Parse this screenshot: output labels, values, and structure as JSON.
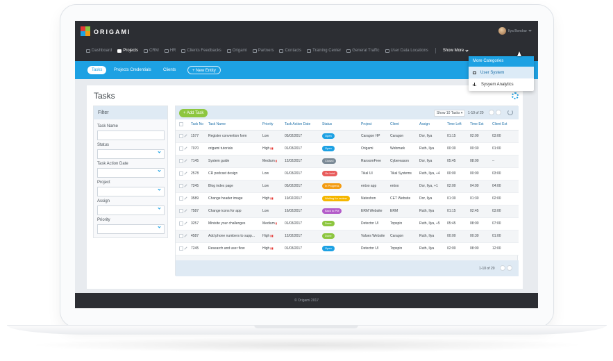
{
  "app": {
    "logo": "ORIGAMI",
    "user_name": "Ilya Bondrar"
  },
  "nav": {
    "items": [
      {
        "label": "Dashboard",
        "icon": "dashboard-icon"
      },
      {
        "label": "Projects",
        "icon": "briefcase-icon"
      },
      {
        "label": "CRM",
        "icon": "crm-icon"
      },
      {
        "label": "HR",
        "icon": "people-icon"
      },
      {
        "label": "Clients Feedbacks",
        "icon": "feedback-icon"
      },
      {
        "label": "Origami",
        "icon": "origami-icon"
      },
      {
        "label": "Partners",
        "icon": "partners-icon"
      },
      {
        "label": "Contacts",
        "icon": "contacts-icon"
      },
      {
        "label": "Training Center",
        "icon": "training-icon"
      },
      {
        "label": "General Traffic",
        "icon": "traffic-icon"
      },
      {
        "label": "User Data Locations",
        "icon": "location-icon"
      }
    ],
    "show_more": "Show More"
  },
  "subnav": {
    "tasks": "Tasks",
    "credentials": "Projects Credentials",
    "clients": "Clients",
    "new_entity": "+ New Entity"
  },
  "dropdown": {
    "header": "More Categories",
    "items": [
      "User System",
      "Sysyem Analytics"
    ]
  },
  "page": {
    "title": "Tasks"
  },
  "filter": {
    "header": "Filter",
    "fields": [
      "Task Name",
      "Status",
      "Task Action Date",
      "Project",
      "Assign",
      "Priority"
    ]
  },
  "grid": {
    "add_button": "+ Add Task",
    "show_tasks": "Show 10 Tasks",
    "page_info": "1-10 of 20",
    "footer_page_info": "1-10 of 20",
    "columns": [
      "Task No",
      "Task Name",
      "Priority",
      "Task Action Date",
      "Status",
      "Project",
      "Client",
      "Assign",
      "Time Left",
      "Time Est",
      "Client Est"
    ],
    "rows": [
      {
        "no": "1577",
        "name": "Register convention form",
        "priority": "Low",
        "date": "05/02/2017",
        "status": "Open",
        "status_color": "#1da1e3",
        "project": "Caragon HP",
        "client": "Caragon",
        "assign": "Dor, Ilya",
        "left": "01:15",
        "est": "02:00",
        "cest": "03:00"
      },
      {
        "no": "7070",
        "name": "origami tutorials",
        "priority": "High",
        "date": "01/03/2017",
        "status": "Open",
        "status_color": "#1da1e3",
        "project": "Origami",
        "client": "Webmark",
        "assign": "Ruth, Ilya",
        "left": "00:30",
        "est": "00:30",
        "cest": "01:00"
      },
      {
        "no": "7145",
        "name": "System guide",
        "priority": "Medium",
        "date": "12/02/2017",
        "status": "Closed",
        "status_color": "#7b8a96",
        "project": "RansomFree",
        "client": "Cybereason",
        "assign": "Dor, Ilya",
        "left": "05:45",
        "est": "08:00",
        "cest": "--"
      },
      {
        "no": "2578",
        "name": "CR podcast design",
        "priority": "Low",
        "date": "01/03/2017",
        "status": "On hold",
        "status_color": "#e85c5c",
        "project": "Tikal UI",
        "client": "Tikal Systems",
        "assign": "Ruth, Ilya, +4",
        "left": "00:00",
        "est": "00:00",
        "cest": "03:00"
      },
      {
        "no": "7245",
        "name": "Blog index page",
        "priority": "Low",
        "date": "05/02/2017",
        "status": "In Progress",
        "status_color": "#f39c12",
        "project": "entoo app",
        "client": "entoo",
        "assign": "Dor, Ilya, +1",
        "left": "02:00",
        "est": "04:00",
        "cest": "04:00"
      },
      {
        "no": "3589",
        "name": "Change header image",
        "priority": "High",
        "date": "19/02/2017",
        "status": "Waiting for review",
        "status_color": "#f5b700",
        "project": "Nateshon",
        "client": "CET Website",
        "assign": "Dor, Ilya",
        "left": "01:30",
        "est": "01:30",
        "cest": "02:00"
      },
      {
        "no": "7587",
        "name": "Change icons for app",
        "priority": "Low",
        "date": "16/02/2017",
        "status": "Back to PM",
        "status_color": "#b35cc9",
        "project": "ERM Website",
        "client": "ERM",
        "assign": "Ruth, Ilya",
        "left": "01:15",
        "est": "02:45",
        "cest": "03:00"
      },
      {
        "no": "3257",
        "name": "Minisite your challenges",
        "priority": "Medium",
        "date": "01/03/2017",
        "status": "Done",
        "status_color": "#8dc63f",
        "project": "Detector UI",
        "client": "Topspin",
        "assign": "Ruth, Ilya, +5",
        "left": "05:45",
        "est": "08:00",
        "cest": "07:00"
      },
      {
        "no": "4587",
        "name": "Add phone numbers to supp...",
        "priority": "High",
        "date": "12/02/2017",
        "status": "Done",
        "status_color": "#8dc63f",
        "project": "Values Website",
        "client": "Caragon",
        "assign": "Ruth, Ilya",
        "left": "00:00",
        "est": "00:30",
        "cest": "01:00"
      },
      {
        "no": "7245",
        "name": "Research and user flow",
        "priority": "High",
        "date": "01/03/2017",
        "status": "Open",
        "status_color": "#1da1e3",
        "project": "Detector UI",
        "client": "Topspin",
        "assign": "Ruth, Ilya",
        "left": "02:00",
        "est": "08:00",
        "cest": "12:00"
      }
    ]
  },
  "footer": {
    "text": "© Origami 2017"
  },
  "colors": {
    "accent": "#1da1e3",
    "dark": "#2c2e33",
    "green": "#8dc63f"
  }
}
